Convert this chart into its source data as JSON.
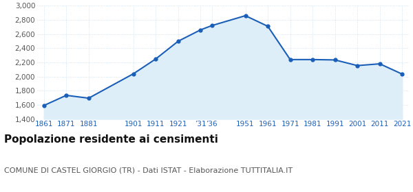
{
  "years": [
    1861,
    1871,
    1881,
    1901,
    1911,
    1921,
    1931,
    1936,
    1951,
    1961,
    1971,
    1981,
    1991,
    2001,
    2011,
    2021
  ],
  "population": [
    1591,
    1735,
    1695,
    2040,
    2250,
    2500,
    2660,
    2720,
    2860,
    2710,
    2240,
    2240,
    2235,
    2155,
    2180,
    2035
  ],
  "x_labels": [
    "1861",
    "1871",
    "1881",
    "1901",
    "1911",
    "1921",
    "’31",
    "’36",
    "1951",
    "1961",
    "1971",
    "1981",
    "1991",
    "2001",
    "2011",
    "2021"
  ],
  "line_color": "#1a5eb8",
  "fill_color": "#ddeef8",
  "marker": "o",
  "marker_size": 3.5,
  "ylim": [
    1400,
    3000
  ],
  "yticks": [
    1400,
    1600,
    1800,
    2000,
    2200,
    2400,
    2600,
    2800,
    3000
  ],
  "title": "Popolazione residente ai censimenti",
  "subtitle": "COMUNE DI CASTEL GIORGIO (TR) - Dati ISTAT - Elaborazione TUTTITALIA.IT",
  "title_fontsize": 11,
  "subtitle_fontsize": 8,
  "grid_color": "#c8dced",
  "background_color": "#ffffff",
  "tick_label_color": "#1a5eb8",
  "tick_label_fontsize": 7.5,
  "ytick_label_color": "#555555",
  "ytick_label_fontsize": 7.5
}
